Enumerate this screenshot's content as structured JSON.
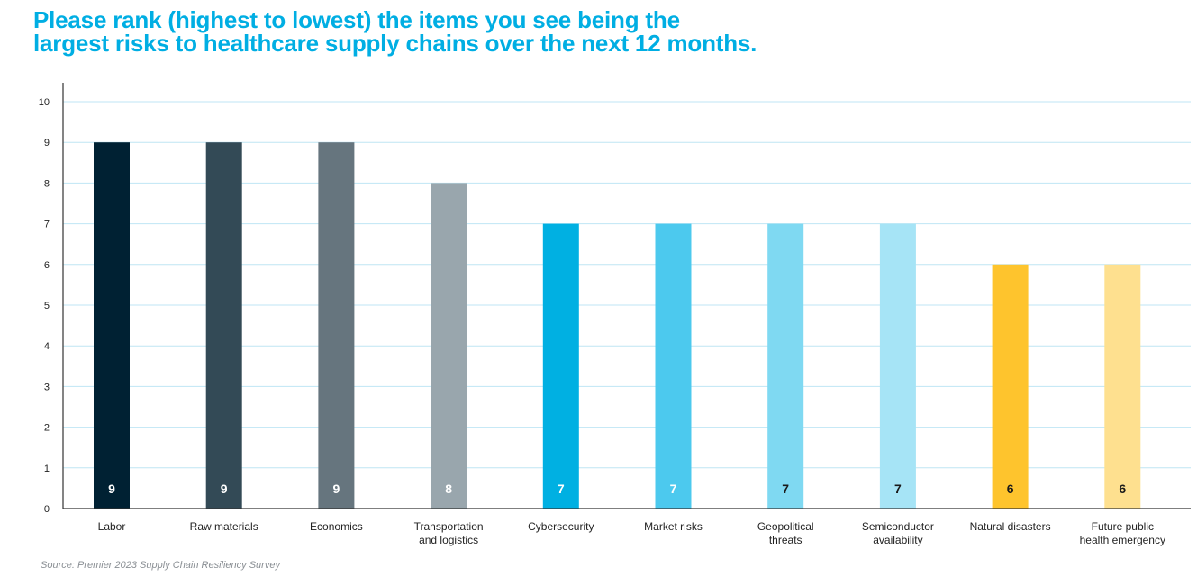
{
  "title_lines": [
    "Please rank (highest to lowest) the items you see being the",
    "largest risks to healthcare supply chains over the next 12 months."
  ],
  "source": "Source: Premier 2023 Supply Chain Resiliency Survey",
  "chart_data": {
    "type": "bar",
    "title": "Please rank (highest to lowest) the items you see being the largest risks to healthcare supply chains over the next 12 months.",
    "xlabel": "",
    "ylabel": "",
    "ylim": [
      0,
      10
    ],
    "yticks": [
      0,
      1,
      2,
      3,
      4,
      5,
      6,
      7,
      8,
      9,
      10
    ],
    "grid": true,
    "legend": "none",
    "categories": [
      [
        "Labor"
      ],
      [
        "Raw materials"
      ],
      [
        "Economics"
      ],
      [
        "Transportation",
        "and logistics"
      ],
      [
        "Cybersecurity"
      ],
      [
        "Market risks"
      ],
      [
        "Geopolitical",
        "threats"
      ],
      [
        "Semiconductor",
        "availability"
      ],
      [
        "Natural disasters"
      ],
      [
        "Future public",
        "health emergency"
      ]
    ],
    "values": [
      9,
      9,
      9,
      8,
      7,
      7,
      7,
      7,
      6,
      6
    ],
    "data_labels": [
      "9",
      "9",
      "9",
      "8",
      "7",
      "7",
      "7",
      "7",
      "6",
      "6"
    ],
    "colors": [
      "#002133",
      "#334a56",
      "#66757e",
      "#99a6ad",
      "#00b0e2",
      "#4cc9ee",
      "#7fd9f2",
      "#a6e4f6",
      "#fec42d",
      "#fee08f"
    ],
    "label_colors": [
      "#ffffff",
      "#ffffff",
      "#ffffff",
      "#ffffff",
      "#ffffff",
      "#ffffff",
      "#1a1a1a",
      "#1a1a1a",
      "#1a1a1a",
      "#1a1a1a"
    ],
    "grid_color": "#bfe6f4",
    "axis_color": "#333333"
  }
}
